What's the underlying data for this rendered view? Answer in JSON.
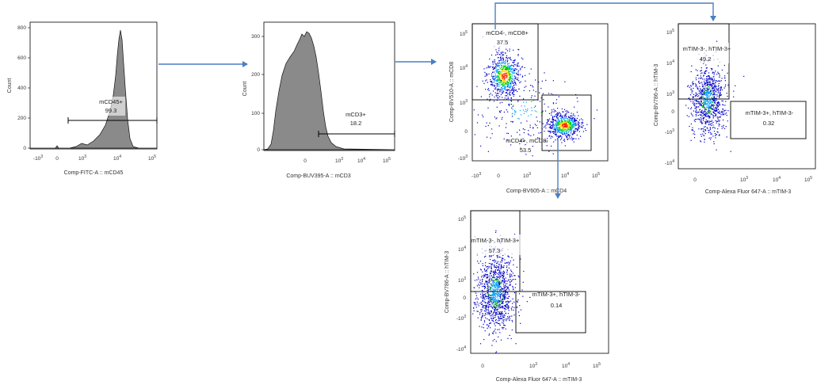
{
  "colors": {
    "arrow": "#4a7fc1",
    "hist_fill": "#8a8a8a",
    "frame": "#000000",
    "density": [
      "#0000c8",
      "#00a0ff",
      "#00d000",
      "#ffd800",
      "#ff2000"
    ]
  },
  "chart_data": [
    {
      "id": "p1",
      "type": "histogram",
      "xlabel": "Comp-FITC-A :: mCD45",
      "ylabel": "Count",
      "yticks": [
        "0",
        "200",
        "400",
        "600",
        "800"
      ],
      "xticks": [
        "-10^3",
        "0",
        "10^3",
        "10^4",
        "10^5"
      ],
      "gates": [
        {
          "name": "mCD45+",
          "value": "99.3"
        }
      ]
    },
    {
      "id": "p2",
      "type": "histogram",
      "xlabel": "Comp-BUV395-A :: mCD3",
      "ylabel": "Count",
      "yticks": [
        "0",
        "100",
        "200",
        "300"
      ],
      "xticks": [
        "0",
        "10^3",
        "10^4",
        "10^5"
      ],
      "gates": [
        {
          "name": "mCD3+",
          "value": "18.2"
        }
      ]
    },
    {
      "id": "p3",
      "type": "scatter",
      "xlabel": "Comp-BV605-A :: mCD4",
      "ylabel": "Comp-BV510-A :: mCD8",
      "xticks": [
        "-10^3",
        "0",
        "10^3",
        "10^4",
        "10^5"
      ],
      "yticks": [
        "-10^3",
        "0",
        "10^3",
        "10^4",
        "10^5"
      ],
      "gates": [
        {
          "name": "mCD4-, mCD8+",
          "value": "37.5"
        },
        {
          "name": "mCD4+, mCD8-",
          "value": "53.5"
        }
      ]
    },
    {
      "id": "p4",
      "type": "scatter",
      "xlabel": "Comp-Alexa Fluor 647-A :: mTIM-3",
      "ylabel": "Comp-BV786-A :: hTIM-3",
      "xticks": [
        "0",
        "10^3",
        "10^4",
        "10^5"
      ],
      "yticks": [
        "-10^4",
        "-10^3",
        "0",
        "10^3",
        "10^4",
        "10^5"
      ],
      "gates": [
        {
          "name": "mTIM-3-, hTIM-3+",
          "value": "49.2"
        },
        {
          "name": "mTIM-3+, hTIM-3-",
          "value": "0.32"
        }
      ]
    },
    {
      "id": "p5",
      "type": "scatter",
      "xlabel": "Comp-Alexa Fluor 647-A :: mTIM-3",
      "ylabel": "Comp-BV786-A :: hTIM-3",
      "xticks": [
        "0",
        "10^3",
        "10^4",
        "10^5"
      ],
      "yticks": [
        "-10^4",
        "-10^3",
        "0",
        "10^3",
        "10^4",
        "10^5"
      ],
      "gates": [
        {
          "name": "mTIM-3-, hTIM-3+",
          "value": "57.3"
        },
        {
          "name": "mTIM-3+, hTIM-3-",
          "value": "0.14"
        }
      ]
    }
  ]
}
